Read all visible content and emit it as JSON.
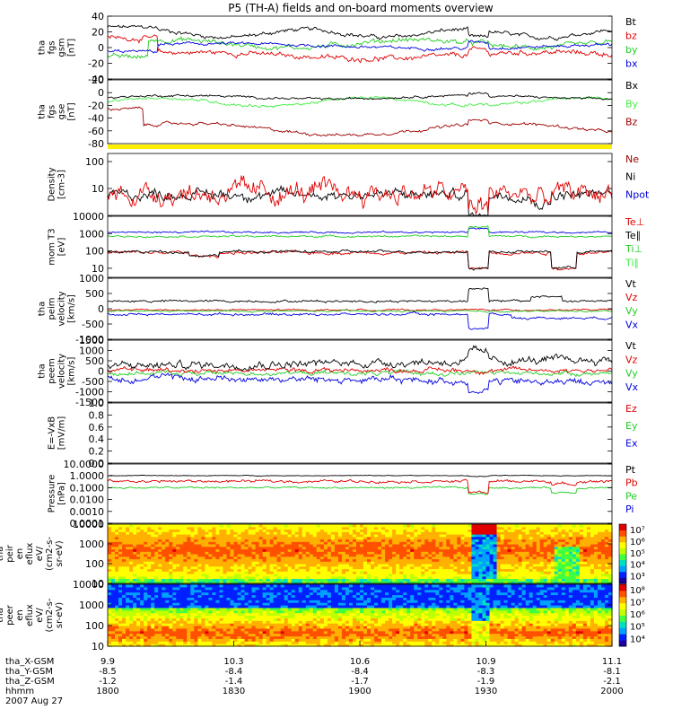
{
  "title": "P5 (TH-A) fields and on-board moments overview",
  "colors": {
    "black": "#000000",
    "red": "#e00000",
    "green": "#22cc22",
    "blue": "#0000dd",
    "darkred": "#a00000",
    "brightgreen": "#44ee44",
    "yellow": "#ffee00"
  },
  "chart_data": {
    "type": "line",
    "x_ticks": [
      "1800",
      "1830",
      "1900",
      "1930",
      "2000"
    ],
    "ephemeris": [
      {
        "label": "tha_X-GSM",
        "values": [
          "9.9",
          "10.3",
          "10.6",
          "10.9",
          "11.1"
        ]
      },
      {
        "label": "tha_Y-GSM",
        "values": [
          "-8.5",
          "-8.4",
          "-8.4",
          "-8.3",
          "-8.1"
        ]
      },
      {
        "label": "tha_Z-GSM",
        "values": [
          "-1.2",
          "-1.4",
          "-1.7",
          "-1.9",
          "-2.1"
        ]
      },
      {
        "label": "hhmm",
        "values": [
          "1800",
          "1830",
          "1900",
          "1930",
          "2000"
        ]
      }
    ],
    "date_label": "2007 Aug 27",
    "panels": [
      {
        "id": "fgs_gsm",
        "ylabel": [
          "tha",
          "fgs",
          "gsm",
          "[nT]"
        ],
        "ylim": [
          -40,
          40
        ],
        "log": false,
        "ticks": [
          "40",
          "20",
          "0",
          "-20",
          "-40"
        ],
        "legend": [
          {
            "name": "Bt",
            "color": "black"
          },
          {
            "name": "bz",
            "color": "red"
          },
          {
            "name": "by",
            "color": "green"
          },
          {
            "name": "bx",
            "color": "blue"
          }
        ]
      },
      {
        "id": "fgs_gse",
        "ylabel": [
          "tha",
          "fgs",
          "gse",
          "[nT]"
        ],
        "ylim": [
          -90,
          20
        ],
        "log": false,
        "ticks": [
          "20",
          "0",
          "-20",
          "-40",
          "-60",
          "-80"
        ],
        "legend": [
          {
            "name": "Bx",
            "color": "black"
          },
          {
            "name": "By",
            "color": "brightgreen"
          },
          {
            "name": "Bz",
            "color": "darkred"
          }
        ]
      },
      {
        "id": "density",
        "ylabel": [
          "Density",
          "[cm-3]"
        ],
        "ylim": [
          1,
          200
        ],
        "log": true,
        "ticks": [
          "100",
          "10"
        ],
        "legend": [
          {
            "name": "Ne",
            "color": "darkred"
          },
          {
            "name": "Ni",
            "color": "black"
          },
          {
            "name": "Npot",
            "color": "blue"
          }
        ]
      },
      {
        "id": "temp",
        "ylabel": [
          "mom T3",
          "[eV]"
        ],
        "ylim": [
          3,
          10000
        ],
        "log": true,
        "ticks": [
          "10000",
          "1000",
          "100",
          "10"
        ],
        "legend": [
          {
            "name": "Te⊥",
            "color": "red"
          },
          {
            "name": "Te∥",
            "color": "black"
          },
          {
            "name": "Ti⊥",
            "color": "green"
          },
          {
            "name": "Ti∥",
            "color": "brightgreen"
          }
        ]
      },
      {
        "id": "peim",
        "ylabel": [
          "tha",
          "peim",
          "velocity",
          "[km/s]"
        ],
        "ylim": [
          -1000,
          1000
        ],
        "log": false,
        "ticks": [
          "1000",
          "500",
          "0",
          "-500",
          "-1000"
        ],
        "legend": [
          {
            "name": "Vt",
            "color": "black"
          },
          {
            "name": "Vz",
            "color": "red"
          },
          {
            "name": "Vy",
            "color": "green"
          },
          {
            "name": "Vx",
            "color": "blue"
          }
        ]
      },
      {
        "id": "peem",
        "ylabel": [
          "tha",
          "peem",
          "velocity",
          "[km/s]"
        ],
        "ylim": [
          -1500,
          1500
        ],
        "log": false,
        "ticks": [
          "1500",
          "1000",
          "500",
          "0",
          "-500",
          "-1000",
          "-1500"
        ],
        "legend": [
          {
            "name": "Vt",
            "color": "black"
          },
          {
            "name": "Vz",
            "color": "red"
          },
          {
            "name": "Vy",
            "color": "green"
          },
          {
            "name": "Vx",
            "color": "blue"
          }
        ]
      },
      {
        "id": "efield",
        "ylabel": [
          "E=-VxB",
          "[mV/m]"
        ],
        "ylim": [
          0,
          1
        ],
        "log": false,
        "ticks": [
          "1.0",
          "0.8",
          "0.6",
          "0.4",
          "0.2",
          "0.0"
        ],
        "legend": [
          {
            "name": "Ez",
            "color": "red"
          },
          {
            "name": "Ey",
            "color": "green"
          },
          {
            "name": "Ex",
            "color": "blue"
          }
        ]
      },
      {
        "id": "pressure",
        "ylabel": [
          "Pressure",
          "[nPa]"
        ],
        "ylim": [
          0.0001,
          10
        ],
        "log": true,
        "ticks": [
          "10.0000",
          "1.0000",
          "0.1000",
          "0.0100",
          "0.0010",
          "0.0001"
        ],
        "legend": [
          {
            "name": "Pt",
            "color": "black"
          },
          {
            "name": "Pb",
            "color": "red"
          },
          {
            "name": "Pe",
            "color": "green"
          },
          {
            "name": "Pi",
            "color": "blue"
          }
        ]
      },
      {
        "id": "peir",
        "ylabel": [
          "tha",
          "peir",
          "en",
          "eflux",
          "eV/",
          "(cm2-s-",
          "sr-eV)"
        ],
        "ylim": [
          10,
          10000
        ],
        "log": true,
        "spectrogram": true,
        "ticks": [
          "10000",
          "1000",
          "100",
          "10"
        ],
        "colorbar": [
          "10⁷",
          "10⁶",
          "10⁵",
          "10⁴",
          "10³"
        ]
      },
      {
        "id": "peer",
        "ylabel": [
          "tha",
          "peer",
          "en",
          "eflux",
          "eV/",
          "(cm2-s-",
          "sr-eV)"
        ],
        "ylim": [
          10,
          10000
        ],
        "log": true,
        "spectrogram": true,
        "ticks": [
          "10000",
          "1000",
          "100",
          "10"
        ],
        "colorbar": [
          "10⁸",
          "10⁷",
          "10⁶",
          "10⁵",
          "10⁴"
        ]
      }
    ]
  }
}
